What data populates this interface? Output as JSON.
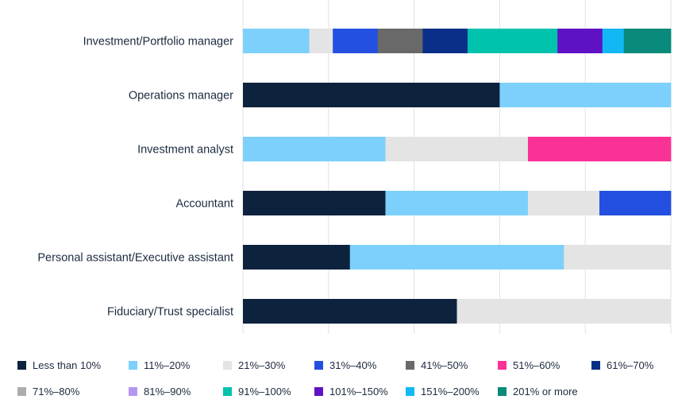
{
  "chart_data": {
    "type": "bar",
    "orientation": "horizontal",
    "stacked": true,
    "normalized": true,
    "title": "",
    "xlabel": "",
    "ylabel": "",
    "xlim": [
      0,
      100
    ],
    "grid": true,
    "legend_position": "bottom",
    "categories": [
      "Investment/Portfolio manager",
      "Operations manager",
      "Investment analyst",
      "Accountant",
      "Personal assistant/Executive assistant",
      "Fiduciary/Trust specialist"
    ],
    "series": [
      {
        "name": "Less than 10%",
        "color": "#0c223d",
        "values": [
          0,
          60,
          0,
          33.3,
          25,
          50
        ]
      },
      {
        "name": "11%–20%",
        "color": "#7dd0fb",
        "values": [
          15.5,
          40,
          33.3,
          33.3,
          50,
          0
        ]
      },
      {
        "name": "21%–30%",
        "color": "#e4e4e4",
        "values": [
          5.5,
          0,
          33.3,
          16.7,
          25,
          50
        ]
      },
      {
        "name": "31%–40%",
        "color": "#2350e0",
        "values": [
          10.5,
          0,
          0,
          16.7,
          0,
          0
        ]
      },
      {
        "name": "41%–50%",
        "color": "#696969",
        "values": [
          10.5,
          0,
          0,
          0,
          0,
          0
        ]
      },
      {
        "name": "51%–60%",
        "color": "#fb3296",
        "values": [
          0,
          0,
          33.4,
          0,
          0,
          0
        ]
      },
      {
        "name": "61%–70%",
        "color": "#0a2f88",
        "values": [
          10.5,
          0,
          0,
          0,
          0,
          0
        ]
      },
      {
        "name": "71%–80%",
        "color": "#adadad",
        "values": [
          0,
          0,
          0,
          0,
          0,
          0
        ]
      },
      {
        "name": "81%–90%",
        "color": "#b597f0",
        "values": [
          0,
          0,
          0,
          0,
          0,
          0
        ]
      },
      {
        "name": "91%–100%",
        "color": "#00c3ad",
        "values": [
          21,
          0,
          0,
          0,
          0,
          0
        ]
      },
      {
        "name": "101%–150%",
        "color": "#5e12c4",
        "values": [
          10.5,
          0,
          0,
          0,
          0,
          0
        ]
      },
      {
        "name": "151%–200%",
        "color": "#12b8f6",
        "values": [
          5,
          0,
          0,
          0,
          0,
          0
        ]
      },
      {
        "name": "201% or more",
        "color": "#098a7a",
        "values": [
          11,
          0,
          0,
          0,
          0,
          0
        ]
      }
    ]
  }
}
